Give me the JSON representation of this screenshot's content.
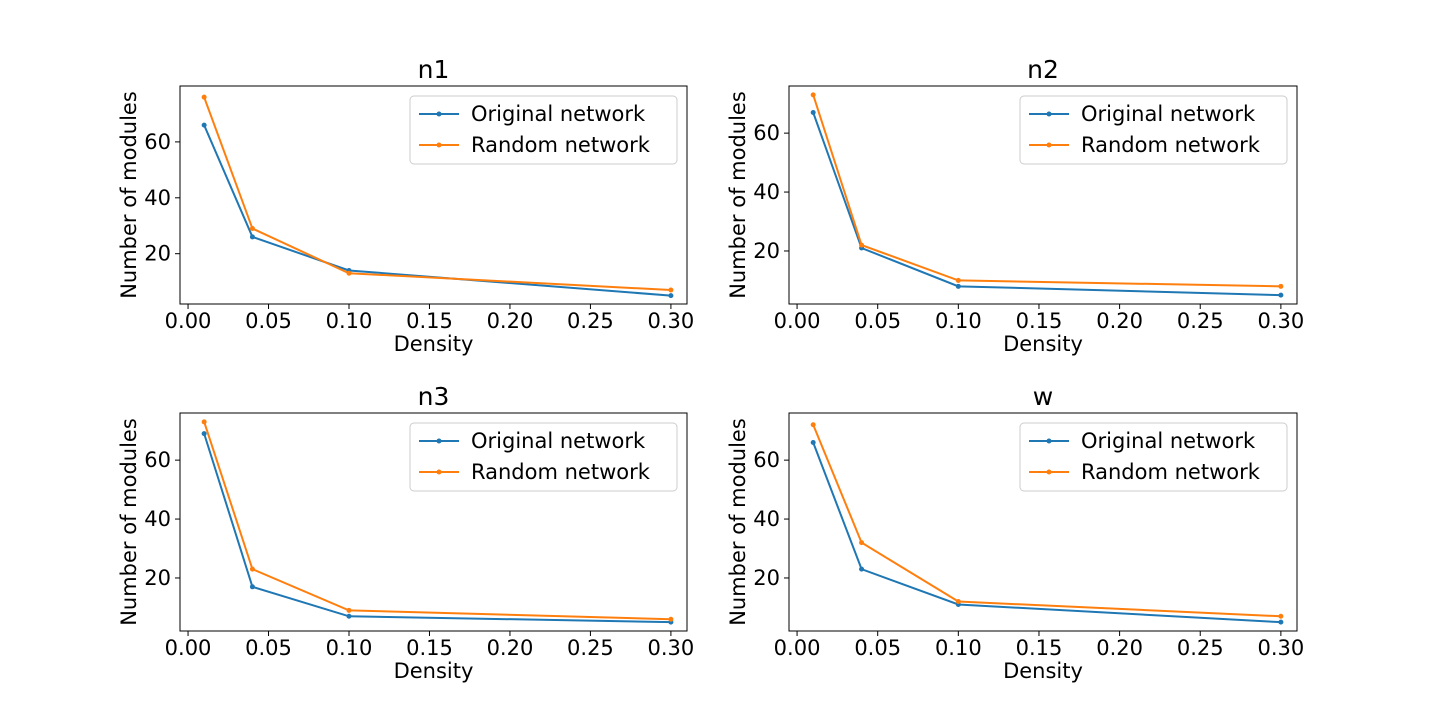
{
  "chart_data": [
    {
      "type": "line",
      "title": "n1",
      "xlabel": "Density",
      "ylabel": "Number of modules",
      "xlim": [
        -0.005,
        0.31
      ],
      "ylim": [
        2,
        80
      ],
      "xticks": [
        "0.00",
        "0.05",
        "0.10",
        "0.15",
        "0.20",
        "0.25",
        "0.30"
      ],
      "yticks": [
        "20",
        "40",
        "60"
      ],
      "legend": "top-right",
      "x": [
        0.01,
        0.04,
        0.1,
        0.3
      ],
      "series": [
        {
          "name": "Original network",
          "color": "#1f77b4",
          "values": [
            66,
            26,
            14,
            5
          ]
        },
        {
          "name": "Random network",
          "color": "#ff7f0e",
          "values": [
            76,
            29,
            13,
            7
          ]
        }
      ]
    },
    {
      "type": "line",
      "title": "n2",
      "xlabel": "Density",
      "ylabel": "Number of modules",
      "xlim": [
        -0.005,
        0.31
      ],
      "ylim": [
        2,
        76
      ],
      "xticks": [
        "0.00",
        "0.05",
        "0.10",
        "0.15",
        "0.20",
        "0.25",
        "0.30"
      ],
      "yticks": [
        "20",
        "40",
        "60"
      ],
      "legend": "top-right",
      "x": [
        0.01,
        0.04,
        0.1,
        0.3
      ],
      "series": [
        {
          "name": "Original network",
          "color": "#1f77b4",
          "values": [
            67,
            21,
            8,
            5
          ]
        },
        {
          "name": "Random network",
          "color": "#ff7f0e",
          "values": [
            73,
            22,
            10,
            8
          ]
        }
      ]
    },
    {
      "type": "line",
      "title": "n3",
      "xlabel": "Density",
      "ylabel": "Number of modules",
      "xlim": [
        -0.005,
        0.31
      ],
      "ylim": [
        2,
        76
      ],
      "xticks": [
        "0.00",
        "0.05",
        "0.10",
        "0.15",
        "0.20",
        "0.25",
        "0.30"
      ],
      "yticks": [
        "20",
        "40",
        "60"
      ],
      "legend": "top-right",
      "x": [
        0.01,
        0.04,
        0.1,
        0.3
      ],
      "series": [
        {
          "name": "Original network",
          "color": "#1f77b4",
          "values": [
            69,
            17,
            7,
            5
          ]
        },
        {
          "name": "Random network",
          "color": "#ff7f0e",
          "values": [
            73,
            23,
            9,
            6
          ]
        }
      ]
    },
    {
      "type": "line",
      "title": "w",
      "xlabel": "Density",
      "ylabel": "Number of modules",
      "xlim": [
        -0.005,
        0.31
      ],
      "ylim": [
        2,
        76
      ],
      "xticks": [
        "0.00",
        "0.05",
        "0.10",
        "0.15",
        "0.20",
        "0.25",
        "0.30"
      ],
      "yticks": [
        "20",
        "40",
        "60"
      ],
      "legend": "top-right",
      "x": [
        0.01,
        0.04,
        0.1,
        0.3
      ],
      "series": [
        {
          "name": "Original network",
          "color": "#1f77b4",
          "values": [
            66,
            23,
            11,
            5
          ]
        },
        {
          "name": "Random network",
          "color": "#ff7f0e",
          "values": [
            72,
            32,
            12,
            7
          ]
        }
      ]
    }
  ]
}
